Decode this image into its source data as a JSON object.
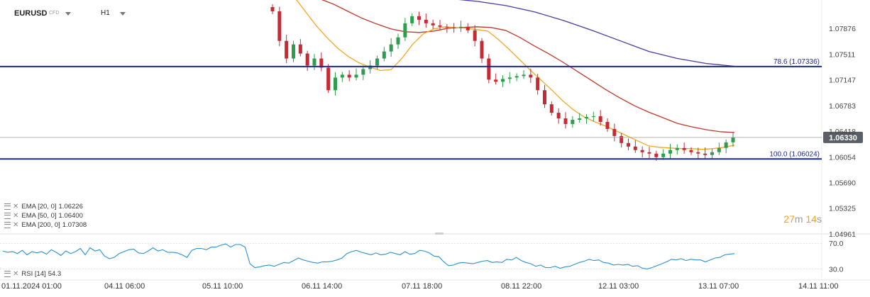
{
  "header": {
    "symbol": "EURUSD",
    "symbol_type": "CFD",
    "timeframe": "H1"
  },
  "indicators": [
    {
      "label": "EMA [20, 0]",
      "value": "1.06226",
      "color": "#f5a623"
    },
    {
      "label": "EMA [50, 0]",
      "value": "1.06400",
      "color": "#c0392b"
    },
    {
      "label": "EMA [200, 0]",
      "value": "1.07308",
      "color": "#4a3aa0"
    }
  ],
  "rsi": {
    "label": "RSI [14]",
    "value": "54.3",
    "levels": [
      "70.0",
      "30.0"
    ],
    "color": "#2a90d0"
  },
  "timer": {
    "minutes": "27",
    "m": "m",
    "seconds": "14",
    "s": "s"
  },
  "current_price": "1.06330",
  "fib": [
    {
      "label": "78.6 (1.07336)",
      "value": 1.07336
    },
    {
      "label": "100.0 (1.06024)",
      "value": 1.06024
    }
  ],
  "chart_data": {
    "type": "candlestick",
    "symbol": "EURUSD",
    "timeframe": "H1",
    "y_ticks": [
      "1.07876",
      "1.07511",
      "1.07147",
      "1.06783",
      "1.06418",
      "1.06054",
      "1.05690",
      "1.05325",
      "1.04961"
    ],
    "ylim": [
      1.0496,
      1.082
    ],
    "x_ticks": [
      "01.11.2024  01:00",
      "04.11  06:00",
      "05.11  10:00",
      "06.11  14:00",
      "07.11  18:00",
      "08.11  22:00",
      "12.11  03:00",
      "13.11  07:00",
      "14.11  11:00"
    ],
    "last_price": 1.0633,
    "horizontal_levels": [
      {
        "name": "78.6 (1.07336)",
        "value": 1.07336
      },
      {
        "name": "100.0 (1.06024)",
        "value": 1.06024
      }
    ],
    "close_approx": [
      1.0812,
      1.077,
      1.0745,
      1.0765,
      1.0752,
      1.0735,
      1.0745,
      1.0732,
      1.07,
      1.0718,
      1.0722,
      1.0718,
      1.0722,
      1.073,
      1.0735,
      1.0745,
      1.0755,
      1.0765,
      1.0775,
      1.0795,
      1.0805,
      1.08,
      1.0795,
      1.0792,
      1.079,
      1.0789,
      1.0788,
      1.079,
      1.0785,
      1.077,
      1.0745,
      1.0715,
      1.0712,
      1.0716,
      1.0718,
      1.072,
      1.0722,
      1.0718,
      1.07,
      1.068,
      1.0668,
      1.066,
      1.0652,
      1.0658,
      1.066,
      1.0662,
      1.0663,
      1.0655,
      1.0645,
      1.0635,
      1.0625,
      1.062,
      1.0615,
      1.0612,
      1.061,
      1.0605,
      1.061,
      1.0615,
      1.0618,
      1.0615,
      1.0612,
      1.061,
      1.0608,
      1.0612,
      1.0618,
      1.0626,
      1.0633
    ],
    "ema_20": [
      1.0832,
      1.0812,
      1.0792,
      1.0775,
      1.076,
      1.0748,
      1.0739,
      1.0733,
      1.0728,
      1.0729,
      1.0745,
      1.0765,
      1.078,
      1.0787,
      1.079,
      1.0789,
      1.0788,
      1.0786,
      1.0784,
      1.0772,
      1.0758,
      1.0743,
      1.0728,
      1.0714,
      1.07,
      1.0685,
      1.0672,
      1.0662,
      1.0655,
      1.0649,
      1.0642,
      1.0635,
      1.0628,
      1.0621,
      1.0619,
      1.0618,
      1.0617,
      1.0617,
      1.0616,
      1.0617,
      1.0619,
      1.0622
    ],
    "ema_50": [
      1.083,
      1.0822,
      1.0812,
      1.0802,
      1.0794,
      1.0787,
      1.0783,
      1.0782,
      1.0784,
      1.0788,
      1.0789,
      1.079,
      1.0789,
      1.0785,
      1.0775,
      1.0763,
      1.0752,
      1.074,
      1.0727,
      1.0714,
      1.0701,
      1.0689,
      1.0678,
      1.0669,
      1.0661,
      1.0653,
      1.0648,
      1.0644,
      1.0641,
      1.064
    ],
    "ema_200": [
      1.0832,
      1.083,
      1.0826,
      1.082,
      1.0811,
      1.0799,
      1.0785,
      1.077,
      1.0755,
      1.0745,
      1.0738,
      1.0734
    ],
    "rsi_14": [
      58,
      56,
      57,
      54,
      59,
      52,
      57,
      55,
      57,
      53,
      60,
      56,
      51,
      58,
      54,
      57,
      62,
      52,
      63,
      58,
      60,
      50,
      46,
      48,
      54,
      57,
      60,
      61,
      55,
      54,
      58,
      63,
      58,
      60,
      56,
      56,
      55,
      52,
      48,
      59,
      62,
      62,
      60,
      64,
      64,
      67,
      69,
      64,
      68,
      68,
      64,
      38,
      32,
      33,
      35,
      36,
      34,
      37,
      40,
      39,
      43,
      47,
      44,
      42,
      40,
      39,
      41,
      41,
      42,
      44,
      47,
      54,
      57,
      59,
      56,
      54,
      52,
      55,
      52,
      53,
      56,
      54,
      52,
      57,
      53,
      54,
      59,
      58,
      55,
      50,
      49,
      41,
      35,
      36,
      39,
      40,
      39,
      38,
      40,
      42,
      43,
      40,
      41,
      40,
      45,
      44,
      48,
      43,
      40,
      38,
      34,
      36,
      32,
      32,
      34,
      31,
      33,
      34,
      37,
      40,
      42,
      45,
      43,
      44,
      40,
      39,
      36,
      37,
      36,
      37,
      34,
      35,
      31,
      30,
      32,
      35,
      38,
      41,
      45,
      44,
      46,
      43,
      45,
      44,
      44,
      41,
      44,
      47,
      48,
      52,
      53,
      54
    ],
    "rsi_ylim": [
      16,
      78
    ]
  }
}
